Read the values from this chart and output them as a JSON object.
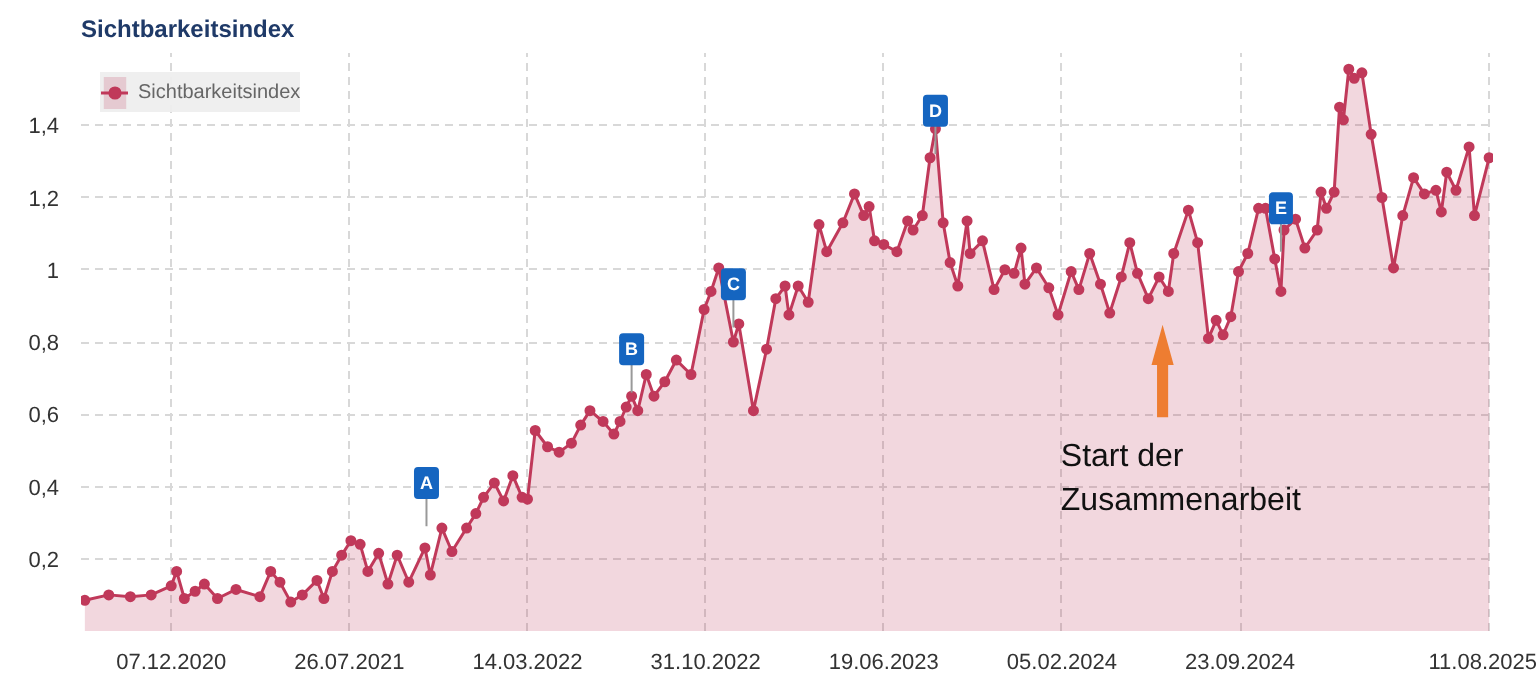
{
  "chart_data": {
    "type": "area",
    "title": "Sichtbarkeitsindex",
    "x": [
      "2020-08-17",
      "2020-09-17",
      "2020-10-15",
      "2020-11-11",
      "2020-12-07",
      "2020-12-14",
      "2020-12-24",
      "2021-01-07",
      "2021-01-19",
      "2021-02-05",
      "2021-03-01",
      "2021-04-01",
      "2021-04-15",
      "2021-04-27",
      "2021-05-11",
      "2021-05-26",
      "2021-06-14",
      "2021-06-23",
      "2021-07-04",
      "2021-07-16",
      "2021-07-28",
      "2021-08-09",
      "2021-08-19",
      "2021-09-02",
      "2021-09-14",
      "2021-09-26",
      "2021-10-11",
      "2021-11-01",
      "2021-11-08",
      "2021-11-23",
      "2021-12-06",
      "2021-12-25",
      "2022-01-06",
      "2022-01-16",
      "2022-01-30",
      "2022-02-11",
      "2022-02-23",
      "2022-03-07",
      "2022-03-14",
      "2022-03-24",
      "2022-04-09",
      "2022-04-24",
      "2022-05-10",
      "2022-05-22",
      "2022-06-03",
      "2022-06-20",
      "2022-07-04",
      "2022-07-12",
      "2022-07-20",
      "2022-07-27",
      "2022-08-04",
      "2022-08-15",
      "2022-08-25",
      "2022-09-08",
      "2022-09-23",
      "2022-10-12",
      "2022-10-29",
      "2022-11-07",
      "2022-11-17",
      "2022-12-06",
      "2022-12-13",
      "2023-01-01",
      "2023-01-18",
      "2023-01-30",
      "2023-02-11",
      "2023-02-16",
      "2023-02-28",
      "2023-03-13",
      "2023-03-27",
      "2023-04-06",
      "2023-04-27",
      "2023-05-12",
      "2023-05-24",
      "2023-05-31",
      "2023-06-07",
      "2023-06-19",
      "2023-07-06",
      "2023-07-20",
      "2023-07-27",
      "2023-08-08",
      "2023-08-18",
      "2023-08-25",
      "2023-09-04",
      "2023-09-13",
      "2023-09-23",
      "2023-10-05",
      "2023-10-09",
      "2023-10-25",
      "2023-11-09",
      "2023-11-23",
      "2023-12-05",
      "2023-12-14",
      "2023-12-19",
      "2024-01-03",
      "2024-01-19",
      "2024-01-31",
      "2024-02-17",
      "2024-02-27",
      "2024-03-12",
      "2024-03-26",
      "2024-04-07",
      "2024-04-22",
      "2024-05-03",
      "2024-05-13",
      "2024-05-27",
      "2024-06-10",
      "2024-06-22",
      "2024-06-29",
      "2024-07-18",
      "2024-07-30",
      "2024-08-13",
      "2024-08-23",
      "2024-09-01",
      "2024-09-11",
      "2024-09-21",
      "2024-10-03",
      "2024-10-17",
      "2024-10-26",
      "2024-11-07",
      "2024-11-15",
      "2024-11-19",
      "2024-12-04",
      "2024-12-16",
      "2025-01-01",
      "2025-01-06",
      "2025-01-13",
      "2025-01-23",
      "2025-01-30",
      "2025-02-04",
      "2025-02-11",
      "2025-02-18",
      "2025-02-28",
      "2025-03-12",
      "2025-03-26",
      "2025-04-10",
      "2025-04-22",
      "2025-05-06",
      "2025-05-20",
      "2025-06-04",
      "2025-06-11",
      "2025-06-18",
      "2025-06-30",
      "2025-07-17",
      "2025-07-24",
      "2025-08-12"
    ],
    "series": [
      {
        "name": "Sichtbarkeitsindex",
        "color": "#c0395a",
        "values": [
          0.085,
          0.1,
          0.095,
          0.1,
          0.125,
          0.165,
          0.09,
          0.11,
          0.13,
          0.09,
          0.115,
          0.095,
          0.165,
          0.135,
          0.08,
          0.1,
          0.14,
          0.09,
          0.165,
          0.21,
          0.25,
          0.24,
          0.165,
          0.215,
          0.13,
          0.21,
          0.135,
          0.23,
          0.155,
          0.285,
          0.22,
          0.285,
          0.325,
          0.37,
          0.41,
          0.36,
          0.43,
          0.37,
          0.365,
          0.555,
          0.51,
          0.495,
          0.52,
          0.57,
          0.61,
          0.58,
          0.545,
          0.58,
          0.62,
          0.65,
          0.61,
          0.71,
          0.65,
          0.69,
          0.75,
          0.71,
          0.89,
          0.94,
          1.005,
          0.8,
          0.85,
          0.61,
          0.78,
          0.92,
          0.955,
          0.875,
          0.955,
          0.91,
          1.125,
          1.05,
          1.13,
          1.21,
          1.15,
          1.175,
          1.08,
          1.07,
          1.05,
          1.135,
          1.11,
          1.15,
          1.31,
          1.39,
          1.13,
          1.02,
          0.955,
          1.135,
          1.045,
          1.08,
          0.945,
          1.0,
          0.99,
          1.06,
          0.96,
          1.005,
          0.95,
          0.875,
          0.995,
          0.945,
          1.045,
          0.96,
          0.88,
          0.98,
          1.075,
          0.99,
          0.92,
          0.98,
          0.94,
          1.045,
          1.165,
          1.075,
          0.81,
          0.86,
          0.82,
          0.87,
          0.995,
          1.045,
          1.17,
          1.17,
          1.03,
          0.94,
          1.11,
          1.14,
          1.06,
          1.11,
          1.215,
          1.17,
          1.215,
          1.45,
          1.415,
          1.555,
          1.53,
          1.545,
          1.375,
          1.2,
          1.005,
          1.15,
          1.255,
          1.21,
          1.22,
          1.16,
          1.27,
          1.22,
          1.34,
          1.15,
          1.31
        ]
      }
    ],
    "xlim": [
      "2020-08-12",
      "2025-08-17"
    ],
    "xticks": [
      {
        "value": "2020-12-07",
        "label": "07.12.2020"
      },
      {
        "value": "2021-07-26",
        "label": "26.07.2021"
      },
      {
        "value": "2022-03-14",
        "label": "14.03.2022"
      },
      {
        "value": "2022-10-31",
        "label": "31.10.2022"
      },
      {
        "value": "2023-06-19",
        "label": "19.06.2023"
      },
      {
        "value": "2024-02-05",
        "label": "05.02.2024"
      },
      {
        "value": "2024-09-23",
        "label": "23.09.2024"
      },
      {
        "value": "2025-08-11",
        "label": "11.08.2025"
      }
    ],
    "ylim": [
      0,
      1.6
    ],
    "yticks": [
      {
        "value": 0.2,
        "label": "0,2"
      },
      {
        "value": 0.4,
        "label": "0,4"
      },
      {
        "value": 0.6,
        "label": "0,6"
      },
      {
        "value": 0.8,
        "label": "0,8"
      },
      {
        "value": 1,
        "label": "1"
      },
      {
        "value": 1.2,
        "label": "1,2"
      },
      {
        "value": 1.4,
        "label": "1,4"
      }
    ],
    "grid": true,
    "legend": "top left",
    "marker": "circle",
    "annotations": [
      {
        "text": "A",
        "x": "2021-11-03",
        "y": 0.41
      },
      {
        "text": "B",
        "x": "2022-07-27",
        "y": 0.78
      },
      {
        "text": "C",
        "x": "2022-12-06",
        "y": 0.96
      },
      {
        "text": "D",
        "x": "2023-08-25",
        "y": 1.44
      },
      {
        "text": "E",
        "x": "2024-11-15",
        "y": 1.17
      },
      "Start der\nZusammenarbeit"
    ]
  }
}
